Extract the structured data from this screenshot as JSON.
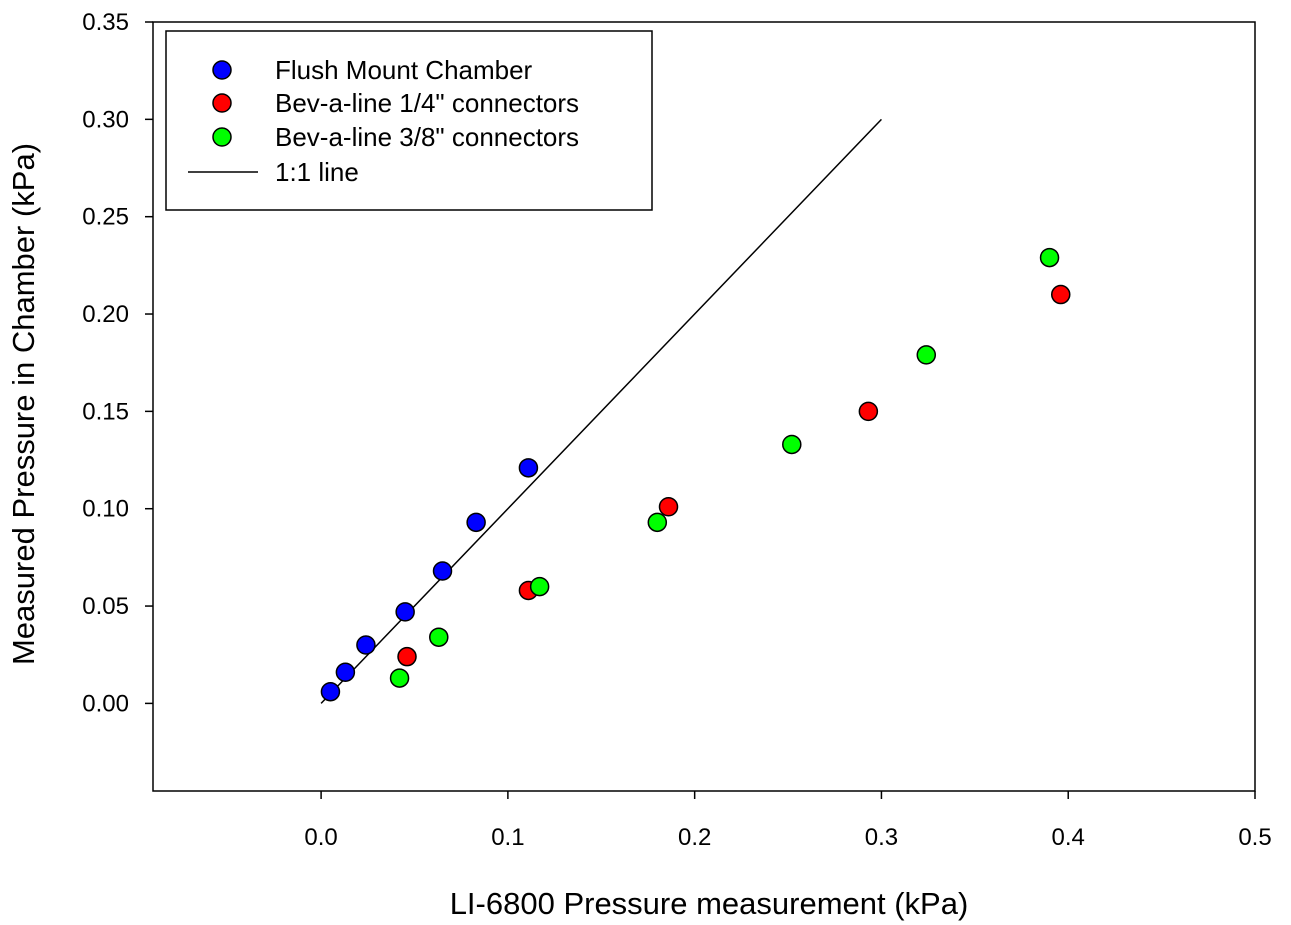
{
  "chart_data": {
    "type": "scatter",
    "xlabel": "LI-6800 Pressure measurement (kPa)",
    "ylabel": "Measured Pressure in Chamber (kPa)",
    "xlim": [
      -0.09,
      0.5
    ],
    "ylim": [
      -0.045,
      0.35
    ],
    "xticks": [
      0.0,
      0.1,
      0.2,
      0.3,
      0.4,
      0.5
    ],
    "xtick_labels": [
      "0.0",
      "0.1",
      "0.2",
      "0.3",
      "0.4",
      "0.5"
    ],
    "yticks": [
      0.0,
      0.05,
      0.1,
      0.15,
      0.2,
      0.25,
      0.3,
      0.35
    ],
    "ytick_labels": [
      "0.00",
      "0.05",
      "0.10",
      "0.15",
      "0.20",
      "0.25",
      "0.30",
      "0.35"
    ],
    "grid": false,
    "legend_position": "top-left",
    "series": [
      {
        "name": "Flush Mount Chamber",
        "color": "#0000ff",
        "points": [
          [
            0.005,
            0.006
          ],
          [
            0.013,
            0.016
          ],
          [
            0.024,
            0.03
          ],
          [
            0.045,
            0.047
          ],
          [
            0.065,
            0.068
          ],
          [
            0.083,
            0.093
          ],
          [
            0.111,
            0.121
          ]
        ]
      },
      {
        "name": "Bev-a-line 1/4\" connectors",
        "color": "#ff0000",
        "points": [
          [
            0.046,
            0.024
          ],
          [
            0.111,
            0.058
          ],
          [
            0.186,
            0.101
          ],
          [
            0.293,
            0.15
          ],
          [
            0.396,
            0.21
          ]
        ]
      },
      {
        "name": "Bev-a-line 3/8\" connectors",
        "color": "#00ff00",
        "points": [
          [
            0.042,
            0.013
          ],
          [
            0.063,
            0.034
          ],
          [
            0.117,
            0.06
          ],
          [
            0.18,
            0.093
          ],
          [
            0.252,
            0.133
          ],
          [
            0.324,
            0.179
          ],
          [
            0.39,
            0.229
          ]
        ]
      }
    ],
    "reference_line": {
      "name": "1:1 line",
      "color": "#000000",
      "points": [
        [
          0.0,
          0.0
        ],
        [
          0.3,
          0.3
        ]
      ]
    }
  }
}
